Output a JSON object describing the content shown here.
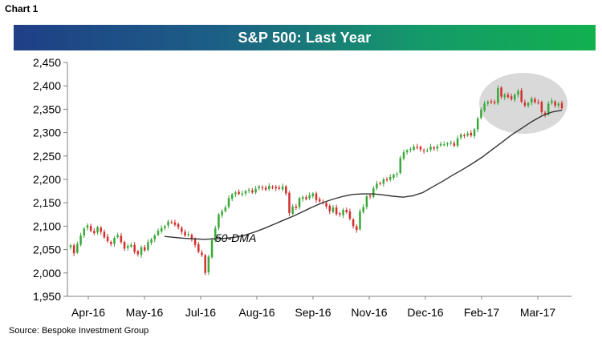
{
  "chart_label": "Chart 1",
  "source": "Source: Bespoke Investment Group",
  "colors": {
    "up": "#3aa83a",
    "down": "#d42f2f",
    "ma": "#333333",
    "highlight": "#cfcfcf"
  },
  "chart_data": {
    "type": "line",
    "title": "S&P 500: Last Year",
    "xlabel": "",
    "ylabel": "",
    "ylim": [
      1950,
      2450
    ],
    "yticks": [
      1950,
      2000,
      2050,
      2100,
      2150,
      2200,
      2250,
      2300,
      2350,
      2400,
      2450
    ],
    "ytick_labels": [
      "1,950",
      "2,000",
      "2,050",
      "2,100",
      "2,150",
      "2,200",
      "2,250",
      "2,300",
      "2,350",
      "2,400",
      "2,450"
    ],
    "xtick_labels": [
      "Apr-16",
      "May-16",
      "Jul-16",
      "Aug-16",
      "Sep-16",
      "Nov-16",
      "Dec-16",
      "Feb-17",
      "Mar-17"
    ],
    "grid": false,
    "annotation": "50-DMA",
    "highlight": "recent highs circled (Mar-17)",
    "series": [
      {
        "style": "candlestick",
        "close": [
          2059,
          2042,
          2062,
          2080,
          2095,
          2102,
          2090,
          2085,
          2098,
          2088,
          2076,
          2068,
          2062,
          2075,
          2081,
          2066,
          2052,
          2058,
          2060,
          2045,
          2040,
          2055,
          2048,
          2066,
          2072,
          2080,
          2090,
          2096,
          2100,
          2110,
          2108,
          2103,
          2098,
          2088,
          2080,
          2083,
          2072,
          2060,
          2045,
          2038,
          2000,
          2035,
          2070,
          2095,
          2125,
          2132,
          2140,
          2160,
          2168,
          2172,
          2169,
          2170,
          2175,
          2178,
          2172,
          2180,
          2185,
          2182,
          2178,
          2186,
          2184,
          2181,
          2180,
          2185,
          2170,
          2128,
          2142,
          2139,
          2160,
          2162,
          2158,
          2166,
          2170,
          2156,
          2153,
          2150,
          2142,
          2132,
          2140,
          2126,
          2125,
          2135,
          2130,
          2116,
          2100,
          2092,
          2132,
          2141,
          2164,
          2164,
          2181,
          2191,
          2192,
          2200,
          2198,
          2205,
          2210,
          2212,
          2246,
          2258,
          2262,
          2265,
          2270,
          2268,
          2264,
          2261,
          2262,
          2270,
          2266,
          2271,
          2276,
          2275,
          2277,
          2279,
          2272,
          2288,
          2296,
          2294,
          2298,
          2294,
          2307,
          2330,
          2349,
          2362,
          2366,
          2367,
          2363,
          2395,
          2377,
          2381,
          2376,
          2372,
          2381,
          2389,
          2366,
          2358,
          2363,
          2373,
          2365,
          2364,
          2344,
          2339,
          2362,
          2368,
          2358,
          2362,
          2352
        ]
      },
      {
        "name": "50-DMA",
        "style": "line",
        "values": [
          2078,
          2076,
          2074,
          2073,
          2072,
          2073,
          2074,
          2076,
          2080,
          2087,
          2095,
          2104,
          2113,
          2122,
          2132,
          2142,
          2151,
          2158,
          2164,
          2168,
          2169,
          2169,
          2167,
          2164,
          2162,
          2165,
          2172,
          2184,
          2196,
          2209,
          2221,
          2234,
          2248,
          2264,
          2280,
          2296,
          2310,
          2324,
          2336,
          2344,
          2348
        ]
      }
    ]
  }
}
